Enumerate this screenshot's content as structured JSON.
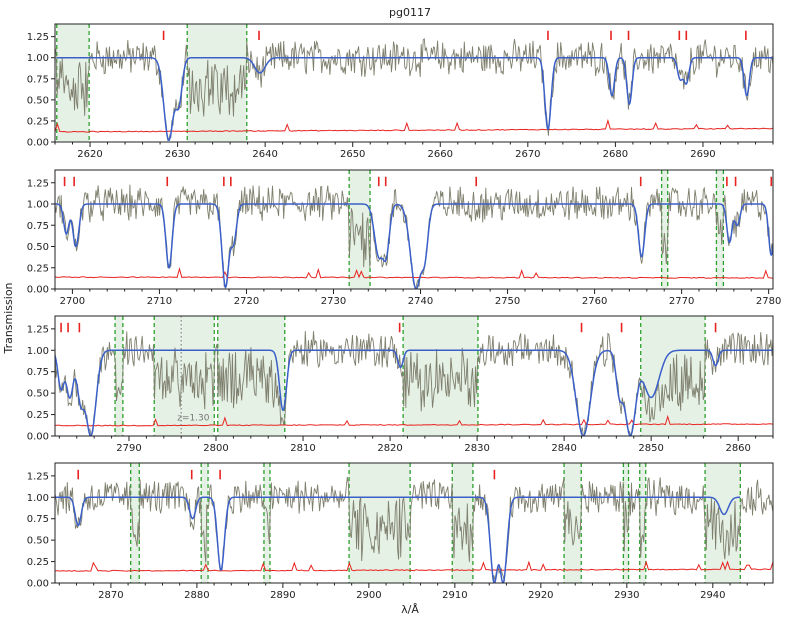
{
  "chart_data": {
    "type": "line",
    "title": "pg0117",
    "xlabel": "λ/Å",
    "ylabel": "Transmission",
    "ylim": [
      0,
      1.4
    ],
    "yticks": [
      0.0,
      0.25,
      0.5,
      0.75,
      1.0,
      1.25
    ],
    "colors": {
      "data": "#7f7f6e",
      "model": "#3a5fc8",
      "error": "#e8231f",
      "marker": "#e8231f",
      "region_fill": "#cfe6cf",
      "region_edge": "#2ca02c",
      "annotation": "#888888"
    },
    "panels": [
      {
        "xlim": [
          2616,
          2698
        ],
        "xticks": [
          2620,
          2630,
          2640,
          2650,
          2660,
          2670,
          2680,
          2690
        ],
        "masked_regions": [
          [
            2616.2,
            2619.9
          ],
          [
            2631.1,
            2637.9
          ]
        ],
        "line_markers": [
          2628.4,
          2639.3,
          2672.3,
          2679.5,
          2681.5,
          2687.3,
          2688.1,
          2694.9
        ],
        "absorption_lines": [
          {
            "center": 2629.0,
            "depth": 0.98,
            "width": 0.55
          },
          {
            "center": 2630.1,
            "depth": 0.55,
            "width": 0.4
          },
          {
            "center": 2639.4,
            "depth": 0.18,
            "width": 0.6
          },
          {
            "center": 2672.3,
            "depth": 0.85,
            "width": 0.35
          },
          {
            "center": 2679.6,
            "depth": 0.45,
            "width": 0.3
          },
          {
            "center": 2681.6,
            "depth": 0.55,
            "width": 0.3
          },
          {
            "center": 2687.4,
            "depth": 0.25,
            "width": 0.3
          },
          {
            "center": 2688.1,
            "depth": 0.3,
            "width": 0.3
          },
          {
            "center": 2695.0,
            "depth": 0.45,
            "width": 0.3
          }
        ],
        "model_range": [
          2616.2,
          2698
        ],
        "error_base": 0.12,
        "error_end": 0.16
      },
      {
        "xlim": [
          2698,
          2780.5
        ],
        "xticks": [
          2700,
          2710,
          2720,
          2730,
          2740,
          2750,
          2760,
          2770,
          2780
        ],
        "masked_regions": [
          [
            2731.8,
            2734.2
          ],
          [
            2767.7,
            2768.4
          ],
          [
            2774.0,
            2774.8
          ]
        ],
        "line_markers": [
          2699.1,
          2700.2,
          2710.9,
          2717.4,
          2718.2,
          2735.2,
          2736.0,
          2746.4,
          2765.3,
          2775.2,
          2776.2,
          2780.3
        ],
        "absorption_lines": [
          {
            "center": 2699.3,
            "depth": 0.35,
            "width": 0.3
          },
          {
            "center": 2700.4,
            "depth": 0.5,
            "width": 0.35
          },
          {
            "center": 2711.1,
            "depth": 0.75,
            "width": 0.35
          },
          {
            "center": 2717.6,
            "depth": 0.98,
            "width": 0.4
          },
          {
            "center": 2718.5,
            "depth": 0.45,
            "width": 0.35
          },
          {
            "center": 2735.2,
            "depth": 0.6,
            "width": 0.5
          },
          {
            "center": 2736.0,
            "depth": 0.6,
            "width": 0.4
          },
          {
            "center": 2739.5,
            "depth": 1.0,
            "width": 0.65
          },
          {
            "center": 2740.4,
            "depth": 0.6,
            "width": 0.4
          },
          {
            "center": 2765.4,
            "depth": 0.62,
            "width": 0.35
          },
          {
            "center": 2775.5,
            "depth": 0.45,
            "width": 0.3
          },
          {
            "center": 2776.4,
            "depth": 0.25,
            "width": 0.3
          },
          {
            "center": 2780.3,
            "depth": 0.6,
            "width": 0.3
          }
        ],
        "model_range": [
          2698,
          2780.5
        ],
        "error_base": 0.14,
        "error_end": 0.13
      },
      {
        "xlim": [
          2781.5,
          2864
        ],
        "xticks": [
          2790,
          2800,
          2810,
          2820,
          2830,
          2840,
          2850,
          2860
        ],
        "masked_regions": [
          [
            2788.4,
            2789.3
          ],
          [
            2792.9,
            2799.8
          ],
          [
            2800.2,
            2807.9
          ],
          [
            2821.5,
            2830.1
          ],
          [
            2848.8,
            2856.2
          ]
        ],
        "line_markers": [
          2782.2,
          2783.0,
          2784.3,
          2821.1,
          2842.0,
          2846.6,
          2857.4
        ],
        "absorption_lines": [
          {
            "center": 2782.2,
            "depth": 0.45,
            "width": 0.35
          },
          {
            "center": 2783.2,
            "depth": 0.55,
            "width": 0.4
          },
          {
            "center": 2784.5,
            "depth": 0.6,
            "width": 0.45
          },
          {
            "center": 2785.6,
            "depth": 1.0,
            "width": 0.6
          },
          {
            "center": 2807.7,
            "depth": 0.7,
            "width": 0.4
          },
          {
            "center": 2821.2,
            "depth": 0.2,
            "width": 0.3
          },
          {
            "center": 2842.2,
            "depth": 1.0,
            "width": 0.8
          },
          {
            "center": 2846.4,
            "depth": 0.5,
            "width": 0.4
          },
          {
            "center": 2847.6,
            "depth": 1.0,
            "width": 0.65
          },
          {
            "center": 2850.0,
            "depth": 0.55,
            "width": 0.9
          },
          {
            "center": 2857.4,
            "depth": 0.18,
            "width": 0.3
          }
        ],
        "model_range": [
          2781.5,
          2864
        ],
        "error_base": 0.12,
        "error_end": 0.14,
        "annotation": {
          "x": 2796.0,
          "text": "z=1.30"
        }
      },
      {
        "xlim": [
          2863.5,
          2947
        ],
        "xticks": [
          2870,
          2880,
          2890,
          2900,
          2910,
          2920,
          2930,
          2940
        ],
        "masked_regions": [
          [
            2872.3,
            2873.3
          ],
          [
            2880.5,
            2881.3
          ],
          [
            2887.8,
            2888.5
          ],
          [
            2897.7,
            2904.8
          ],
          [
            2909.7,
            2912.1
          ],
          [
            2922.7,
            2924.7
          ],
          [
            2929.6,
            2930.2
          ],
          [
            2931.5,
            2932.2
          ],
          [
            2939.1,
            2943.2
          ]
        ],
        "line_markers": [
          2866.2,
          2879.4,
          2882.7,
          2914.6
        ],
        "absorption_lines": [
          {
            "center": 2866.2,
            "depth": 0.33,
            "width": 0.35
          },
          {
            "center": 2879.5,
            "depth": 0.25,
            "width": 0.35
          },
          {
            "center": 2882.8,
            "depth": 0.85,
            "width": 0.4
          },
          {
            "center": 2914.6,
            "depth": 1.0,
            "width": 0.45
          },
          {
            "center": 2915.6,
            "depth": 1.0,
            "width": 0.45
          },
          {
            "center": 2941.3,
            "depth": 0.2,
            "width": 0.5
          }
        ],
        "model_range": [
          2863.5,
          2943.2
        ],
        "error_base": 0.14,
        "error_end": 0.16
      }
    ]
  }
}
